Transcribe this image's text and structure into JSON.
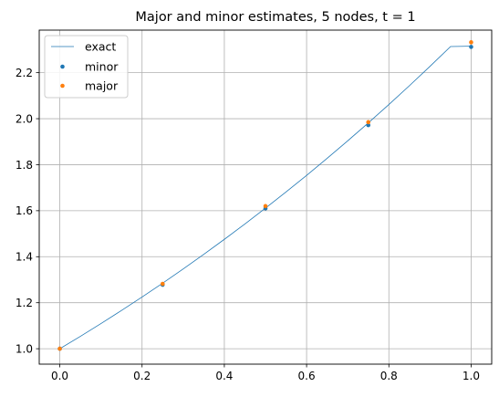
{
  "chart_data": {
    "type": "scatter",
    "title": "Major and minor estimates, 5 nodes, t = 1",
    "xlabel": "",
    "ylabel": "",
    "xlim": [
      -0.05,
      1.05
    ],
    "ylim": [
      0.933,
      2.385
    ],
    "grid": true,
    "legend_position": "top-left",
    "x_ticks": [
      "0.0",
      "0.2",
      "0.4",
      "0.6",
      "0.8",
      "1.0"
    ],
    "y_ticks": [
      "1.0",
      "1.2",
      "1.4",
      "1.6",
      "1.8",
      "2.0",
      "2.2"
    ],
    "x_tick_values": [
      0.0,
      0.2,
      0.4,
      0.6,
      0.8,
      1.0
    ],
    "y_tick_values": [
      1.0,
      1.2,
      1.4,
      1.6,
      1.8,
      2.0,
      2.2
    ],
    "series": [
      {
        "name": "exact",
        "kind": "line",
        "color": "#1f77b4",
        "x": [
          0.0,
          0.05,
          0.1,
          0.15,
          0.2,
          0.25,
          0.3,
          0.35,
          0.4,
          0.45,
          0.5,
          0.55,
          0.6,
          0.65,
          0.7,
          0.75,
          0.8,
          0.85,
          0.9,
          0.95,
          1.0
        ],
        "y": [
          1.0,
          1.0538,
          1.1092,
          1.1662,
          1.2248,
          1.285,
          1.3468,
          1.4103,
          1.4755,
          1.5424,
          1.611,
          1.6815,
          1.7537,
          1.8278,
          1.9038,
          1.9817,
          2.0616,
          2.1435,
          2.2275,
          2.3136,
          2.315
        ]
      },
      {
        "name": "minor",
        "kind": "scatter",
        "color": "#1f77b4",
        "x": [
          0.0,
          0.25,
          0.5,
          0.75,
          1.0
        ],
        "y": [
          1.0,
          1.278,
          1.61,
          1.972,
          2.312
        ]
      },
      {
        "name": "major",
        "kind": "scatter",
        "color": "#ff7f0e",
        "x": [
          0.0,
          0.25,
          0.5,
          0.75,
          1.0
        ],
        "y": [
          1.0,
          1.282,
          1.62,
          1.985,
          2.332
        ]
      }
    ]
  }
}
